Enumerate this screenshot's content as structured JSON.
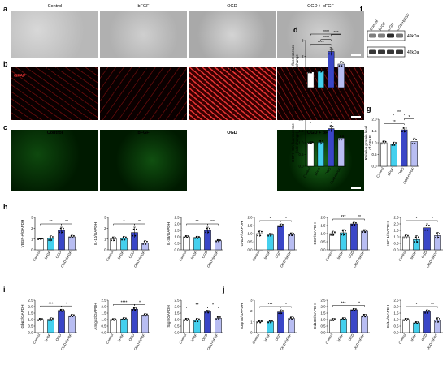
{
  "groups": [
    "Control",
    "bFGF",
    "OGD",
    "OGD + bFGF"
  ],
  "bar_groups": [
    "Control",
    "bFGF",
    "OGD",
    "OGD+bFGF"
  ],
  "panel_a": {
    "letter": "a"
  },
  "panel_b": {
    "letter": "b",
    "overlay": "GFAP"
  },
  "panel_c": {
    "letter": "c"
  },
  "panel_f": {
    "letter": "f",
    "rows": [
      {
        "name": "GFAP",
        "kda": "49kDa"
      },
      {
        "name": "β-actin",
        "kda": "42kDa"
      }
    ]
  },
  "colors": {
    "control": "#ffffff",
    "bfgf": "#44d0ee",
    "ogd": "#3a46c7",
    "ogdbfgf": "#b8bdf2"
  },
  "chart_data": [
    {
      "id": "d",
      "type": "bar",
      "ylabel": "Fura-3 AM fluorescence\n(fold change)",
      "ylim": [
        0,
        3
      ],
      "ticks": [
        0,
        1,
        2,
        3
      ],
      "values": [
        1.0,
        1.1,
        2.3,
        1.5
      ],
      "errors": [
        0.08,
        0.15,
        0.25,
        0.18
      ],
      "sig": [
        {
          "a": 0,
          "b": 2,
          "t": "****",
          "lvl": 0
        },
        {
          "a": 1,
          "b": 2,
          "t": "****",
          "lvl": 1
        },
        {
          "a": 2,
          "b": 3,
          "t": "***",
          "lvl": 2
        },
        {
          "a": 0,
          "b": 3,
          "t": "****",
          "lvl": 3
        }
      ]
    },
    {
      "id": "e",
      "type": "bar",
      "ylabel": "DCFH-DA fluorescence\n(fold change)",
      "ylim": [
        0,
        2
      ],
      "ticks": [
        0.0,
        0.5,
        1.0,
        1.5,
        2.0
      ],
      "values": [
        1.0,
        1.02,
        1.6,
        1.2
      ],
      "errors": [
        0.05,
        0.1,
        0.15,
        0.12
      ],
      "sig": [
        {
          "a": 0,
          "b": 2,
          "t": "****",
          "lvl": 0
        },
        {
          "a": 2,
          "b": 3,
          "t": "*",
          "lvl": 1
        }
      ]
    },
    {
      "id": "g",
      "type": "bar",
      "ylabel": "Relative protein level\nof GFAP",
      "ylim": [
        0,
        2
      ],
      "ticks": [
        0.0,
        0.5,
        1.0,
        1.5,
        2.0
      ],
      "values": [
        1.0,
        0.95,
        1.55,
        1.05
      ],
      "errors": [
        0.08,
        0.08,
        0.12,
        0.15
      ],
      "sig": [
        {
          "a": 0,
          "b": 2,
          "t": "**",
          "lvl": 0
        },
        {
          "a": 2,
          "b": 3,
          "t": "*",
          "lvl": 1
        },
        {
          "a": 1,
          "b": 2,
          "t": "**",
          "lvl": 2
        }
      ]
    },
    {
      "id": "h1",
      "letter": "h",
      "type": "bar",
      "ylabel": "VEGF-A/GAPDH",
      "ylim": [
        0,
        3
      ],
      "ticks": [
        0,
        1,
        2,
        3
      ],
      "values": [
        1.0,
        1.05,
        1.8,
        1.2
      ],
      "errors": [
        0.05,
        0.25,
        0.3,
        0.15
      ],
      "sig": [
        {
          "a": 0,
          "b": 2,
          "t": "**",
          "lvl": 0
        },
        {
          "a": 2,
          "b": 3,
          "t": "**",
          "lvl": 0
        }
      ]
    },
    {
      "id": "h2",
      "type": "bar",
      "ylabel": "IL-10/GAPDH",
      "ylim": [
        0,
        3
      ],
      "ticks": [
        0,
        1,
        2,
        3
      ],
      "values": [
        1.0,
        1.05,
        1.6,
        0.65
      ],
      "errors": [
        0.2,
        0.2,
        0.5,
        0.2
      ],
      "sig": [
        {
          "a": 0,
          "b": 2,
          "t": "*",
          "lvl": 0
        },
        {
          "a": 2,
          "b": 3,
          "t": "**",
          "lvl": 0
        }
      ]
    },
    {
      "id": "h3",
      "type": "bar",
      "ylabel": "IL-33/GAPDH",
      "ylim": [
        0,
        2.5
      ],
      "ticks": [
        0.0,
        0.5,
        1.0,
        1.5,
        2.0,
        2.5
      ],
      "values": [
        1.0,
        0.95,
        1.5,
        0.7
      ],
      "errors": [
        0.1,
        0.1,
        0.25,
        0.1
      ],
      "sig": [
        {
          "a": 0,
          "b": 2,
          "t": "**",
          "lvl": 0
        },
        {
          "a": 2,
          "b": 3,
          "t": "***",
          "lvl": 0
        }
      ]
    },
    {
      "id": "h4",
      "type": "bar",
      "ylabel": "GNDF/GAPDH",
      "ylim": [
        0,
        2
      ],
      "ticks": [
        0.0,
        0.5,
        1.0,
        1.5,
        2.0
      ],
      "values": [
        1.0,
        0.92,
        1.5,
        0.95
      ],
      "errors": [
        0.2,
        0.1,
        0.1,
        0.1
      ],
      "sig": [
        {
          "a": 0,
          "b": 2,
          "t": "*",
          "lvl": 0
        },
        {
          "a": 2,
          "b": 3,
          "t": "*",
          "lvl": 0
        }
      ]
    },
    {
      "id": "h5",
      "type": "bar",
      "ylabel": "EGF/GAPDH",
      "ylim": [
        0,
        2
      ],
      "ticks": [
        0.0,
        0.5,
        1.0,
        1.5,
        2.0
      ],
      "values": [
        1.0,
        1.05,
        1.6,
        1.15
      ],
      "errors": [
        0.15,
        0.2,
        0.1,
        0.1
      ],
      "sig": [
        {
          "a": 0,
          "b": 2,
          "t": "***",
          "lvl": 0
        },
        {
          "a": 2,
          "b": 3,
          "t": "**",
          "lvl": 0
        }
      ]
    },
    {
      "id": "h6",
      "type": "bar",
      "ylabel": "IGF-1/GAPDH",
      "ylim": [
        0,
        2.5
      ],
      "ticks": [
        0.0,
        0.5,
        1.0,
        1.5,
        2.0,
        2.5
      ],
      "values": [
        1.0,
        0.8,
        1.7,
        1.1
      ],
      "errors": [
        0.15,
        0.3,
        0.3,
        0.25
      ],
      "sig": [
        {
          "a": 0,
          "b": 2,
          "t": "*",
          "lvl": 0
        },
        {
          "a": 2,
          "b": 3,
          "t": "*",
          "lvl": 0
        }
      ]
    },
    {
      "id": "i1",
      "letter": "i",
      "type": "bar",
      "ylabel": "Gbp2/GAPDH",
      "ylim": [
        0,
        2.5
      ],
      "ticks": [
        0.0,
        0.5,
        1.0,
        1.5,
        2.0,
        2.5
      ],
      "values": [
        1.0,
        1.02,
        1.7,
        1.3
      ],
      "errors": [
        0.1,
        0.12,
        0.1,
        0.1
      ],
      "sig": [
        {
          "a": 0,
          "b": 2,
          "t": "***",
          "lvl": 0
        },
        {
          "a": 2,
          "b": 3,
          "t": "*",
          "lvl": 0
        }
      ]
    },
    {
      "id": "i2",
      "type": "bar",
      "ylabel": "Amigo2/GAPDH",
      "ylim": [
        0,
        2.5
      ],
      "ticks": [
        0.0,
        0.5,
        1.0,
        1.5,
        2.0,
        2.5
      ],
      "values": [
        1.0,
        1.05,
        1.8,
        1.35
      ],
      "errors": [
        0.08,
        0.1,
        0.12,
        0.1
      ],
      "sig": [
        {
          "a": 0,
          "b": 2,
          "t": "****",
          "lvl": 0
        },
        {
          "a": 2,
          "b": 3,
          "t": "*",
          "lvl": 0
        }
      ]
    },
    {
      "id": "i3",
      "type": "bar",
      "ylabel": "Srgn/GAPDH",
      "ylim": [
        0,
        2.5
      ],
      "ticks": [
        0.0,
        0.5,
        1.0,
        1.5,
        2.0,
        2.5
      ],
      "values": [
        1.0,
        0.95,
        1.6,
        1.1
      ],
      "errors": [
        0.1,
        0.15,
        0.12,
        0.15
      ],
      "sig": [
        {
          "a": 0,
          "b": 2,
          "t": "**",
          "lvl": 0
        },
        {
          "a": 2,
          "b": 3,
          "t": "*",
          "lvl": 0
        }
      ]
    },
    {
      "id": "j1",
      "letter": "j",
      "type": "bar",
      "ylabel": "B3gnt5/GAPDH",
      "ylim": [
        0,
        3
      ],
      "ticks": [
        0,
        1,
        2,
        3
      ],
      "values": [
        1.0,
        1.02,
        1.9,
        1.3
      ],
      "errors": [
        0.12,
        0.15,
        0.2,
        0.15
      ],
      "sig": [
        {
          "a": 0,
          "b": 2,
          "t": "***",
          "lvl": 0
        },
        {
          "a": 2,
          "b": 3,
          "t": "*",
          "lvl": 0
        }
      ]
    },
    {
      "id": "j2",
      "type": "bar",
      "ylabel": "Cd109/GAPDH",
      "ylim": [
        0,
        2.5
      ],
      "ticks": [
        0.0,
        0.5,
        1.0,
        1.5,
        2.0,
        2.5
      ],
      "values": [
        1.0,
        1.05,
        1.75,
        1.3
      ],
      "errors": [
        0.1,
        0.1,
        0.1,
        0.12
      ],
      "sig": [
        {
          "a": 0,
          "b": 2,
          "t": "***",
          "lvl": 0
        },
        {
          "a": 2,
          "b": 3,
          "t": "*",
          "lvl": 0
        }
      ]
    },
    {
      "id": "j3",
      "type": "bar",
      "ylabel": "Cd14/GAPDH",
      "ylim": [
        0,
        2.5
      ],
      "ticks": [
        0.0,
        0.5,
        1.0,
        1.5,
        2.0,
        2.5
      ],
      "values": [
        1.0,
        0.75,
        1.6,
        0.95
      ],
      "errors": [
        0.1,
        0.1,
        0.15,
        0.2
      ],
      "sig": [
        {
          "a": 0,
          "b": 2,
          "t": "*",
          "lvl": 0
        },
        {
          "a": 2,
          "b": 3,
          "t": "**",
          "lvl": 0
        }
      ]
    }
  ]
}
